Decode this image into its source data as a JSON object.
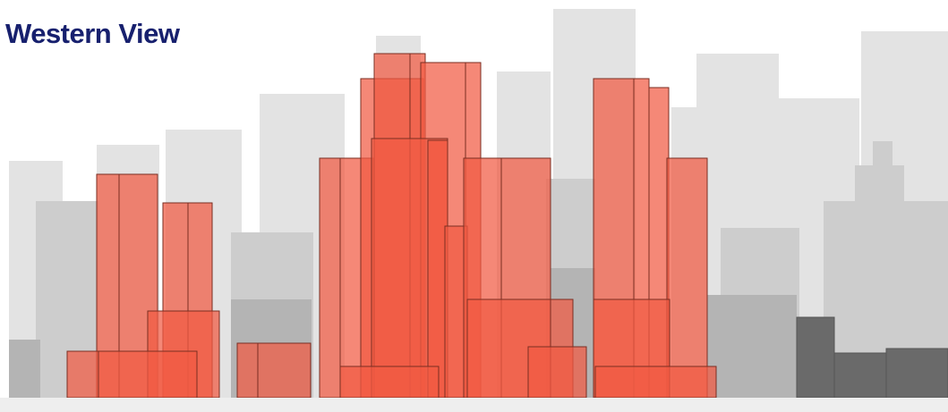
{
  "header": {
    "title": "Western View"
  }
}
